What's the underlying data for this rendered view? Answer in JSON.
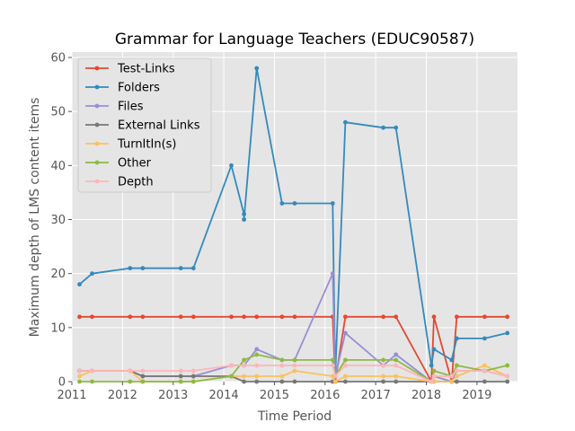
{
  "chart_data": {
    "type": "line",
    "title": "Grammar for Language Teachers (EDUC90587)",
    "xlabel": "Time Period",
    "ylabel": "Maximum depth of LMS content items",
    "xlim": [
      2011,
      2019.8
    ],
    "ylim": [
      0,
      61
    ],
    "xticks": [
      "2011",
      "2012",
      "2013",
      "2014",
      "2015",
      "2016",
      "2017",
      "2018",
      "2019"
    ],
    "yticks": [
      "0",
      "10",
      "20",
      "30",
      "40",
      "50",
      "60"
    ],
    "grid": true,
    "legend_position": "top-left",
    "series": [
      {
        "name": "Test-Links",
        "color": "#E24A33",
        "points": [
          [
            2011.15,
            12
          ],
          [
            2011.4,
            12
          ],
          [
            2012.15,
            12
          ],
          [
            2012.4,
            12
          ],
          [
            2013.15,
            12
          ],
          [
            2013.4,
            12
          ],
          [
            2014.15,
            12
          ],
          [
            2014.4,
            12
          ],
          [
            2014.65,
            12
          ],
          [
            2015.15,
            12
          ],
          [
            2015.4,
            12
          ],
          [
            2016.15,
            12
          ],
          [
            2016.2,
            0
          ],
          [
            2016.4,
            12
          ],
          [
            2017.15,
            12
          ],
          [
            2017.4,
            12
          ],
          [
            2018.1,
            0
          ],
          [
            2018.15,
            12
          ],
          [
            2018.5,
            0
          ],
          [
            2018.6,
            12
          ],
          [
            2019.15,
            12
          ],
          [
            2019.6,
            12
          ]
        ]
      },
      {
        "name": "Folders",
        "color": "#348ABD",
        "points": [
          [
            2011.15,
            18
          ],
          [
            2011.4,
            20
          ],
          [
            2012.15,
            21
          ],
          [
            2012.4,
            21
          ],
          [
            2013.15,
            21
          ],
          [
            2013.4,
            21
          ],
          [
            2014.15,
            40
          ],
          [
            2014.4,
            31
          ],
          [
            2014.4,
            30
          ],
          [
            2014.65,
            58
          ],
          [
            2015.15,
            33
          ],
          [
            2015.4,
            33
          ],
          [
            2016.15,
            33
          ],
          [
            2016.2,
            1
          ],
          [
            2016.4,
            48
          ],
          [
            2017.15,
            47
          ],
          [
            2017.4,
            47
          ],
          [
            2018.1,
            3
          ],
          [
            2018.15,
            6
          ],
          [
            2018.5,
            4
          ],
          [
            2018.6,
            8
          ],
          [
            2019.15,
            8
          ],
          [
            2019.6,
            9
          ]
        ]
      },
      {
        "name": "Files",
        "color": "#988ED5",
        "points": [
          [
            2011.15,
            2
          ],
          [
            2011.4,
            2
          ],
          [
            2012.15,
            2
          ],
          [
            2012.4,
            1
          ],
          [
            2013.15,
            1
          ],
          [
            2013.4,
            1
          ],
          [
            2014.15,
            3
          ],
          [
            2014.4,
            3
          ],
          [
            2014.65,
            6
          ],
          [
            2015.15,
            4
          ],
          [
            2015.4,
            4
          ],
          [
            2016.15,
            20
          ],
          [
            2016.2,
            1
          ],
          [
            2016.4,
            9
          ],
          [
            2017.15,
            3
          ],
          [
            2017.4,
            5
          ],
          [
            2018.1,
            0
          ],
          [
            2018.15,
            1
          ],
          [
            2018.5,
            0
          ],
          [
            2018.6,
            2
          ],
          [
            2019.15,
            2
          ],
          [
            2019.6,
            1
          ]
        ]
      },
      {
        "name": "External Links",
        "color": "#777777",
        "points": [
          [
            2011.15,
            2
          ],
          [
            2011.4,
            2
          ],
          [
            2012.15,
            2
          ],
          [
            2012.4,
            1
          ],
          [
            2013.15,
            1
          ],
          [
            2013.4,
            1
          ],
          [
            2014.15,
            1
          ],
          [
            2014.4,
            0
          ],
          [
            2014.65,
            0
          ],
          [
            2015.15,
            0
          ],
          [
            2015.4,
            0
          ],
          [
            2016.15,
            0
          ],
          [
            2016.2,
            0
          ],
          [
            2016.4,
            0
          ],
          [
            2017.15,
            0
          ],
          [
            2017.4,
            0
          ],
          [
            2018.1,
            0
          ],
          [
            2018.15,
            0
          ],
          [
            2018.5,
            0
          ],
          [
            2018.6,
            0
          ],
          [
            2019.15,
            0
          ],
          [
            2019.6,
            0
          ]
        ]
      },
      {
        "name": "TurnItIn(s)",
        "color": "#FBC15E",
        "points": [
          [
            2011.15,
            1
          ],
          [
            2011.4,
            2
          ],
          [
            2012.15,
            2
          ],
          [
            2012.4,
            0
          ],
          [
            2013.15,
            0
          ],
          [
            2013.4,
            0
          ],
          [
            2014.15,
            1
          ],
          [
            2014.4,
            1
          ],
          [
            2014.65,
            1
          ],
          [
            2015.15,
            1
          ],
          [
            2015.4,
            2
          ],
          [
            2016.15,
            1
          ],
          [
            2016.2,
            0
          ],
          [
            2016.4,
            1
          ],
          [
            2017.15,
            1
          ],
          [
            2017.4,
            1
          ],
          [
            2018.1,
            0
          ],
          [
            2018.15,
            0
          ],
          [
            2018.5,
            0
          ],
          [
            2018.6,
            1
          ],
          [
            2019.15,
            3
          ],
          [
            2019.6,
            1
          ]
        ]
      },
      {
        "name": "Other",
        "color": "#8EBA42",
        "points": [
          [
            2011.15,
            0
          ],
          [
            2011.4,
            0
          ],
          [
            2012.15,
            0
          ],
          [
            2012.4,
            0
          ],
          [
            2013.15,
            0
          ],
          [
            2013.4,
            0
          ],
          [
            2014.15,
            1
          ],
          [
            2014.4,
            4
          ],
          [
            2014.65,
            5
          ],
          [
            2015.15,
            4
          ],
          [
            2015.4,
            4
          ],
          [
            2016.15,
            4
          ],
          [
            2016.2,
            1
          ],
          [
            2016.4,
            4
          ],
          [
            2017.15,
            4
          ],
          [
            2017.4,
            4
          ],
          [
            2018.1,
            0
          ],
          [
            2018.15,
            2
          ],
          [
            2018.5,
            1
          ],
          [
            2018.6,
            3
          ],
          [
            2019.15,
            2
          ],
          [
            2019.6,
            3
          ]
        ]
      },
      {
        "name": "Depth",
        "color": "#FFB5B8",
        "points": [
          [
            2011.15,
            2
          ],
          [
            2011.4,
            2
          ],
          [
            2012.15,
            2
          ],
          [
            2012.4,
            2
          ],
          [
            2013.15,
            2
          ],
          [
            2013.4,
            2
          ],
          [
            2014.15,
            3
          ],
          [
            2014.4,
            3
          ],
          [
            2014.65,
            3
          ],
          [
            2015.15,
            3
          ],
          [
            2015.4,
            3
          ],
          [
            2016.15,
            3
          ],
          [
            2016.2,
            1
          ],
          [
            2016.4,
            3
          ],
          [
            2017.15,
            3
          ],
          [
            2017.4,
            3
          ],
          [
            2018.1,
            0
          ],
          [
            2018.15,
            1
          ],
          [
            2018.5,
            1
          ],
          [
            2018.6,
            2
          ],
          [
            2019.15,
            2
          ],
          [
            2019.6,
            1
          ]
        ]
      }
    ]
  }
}
